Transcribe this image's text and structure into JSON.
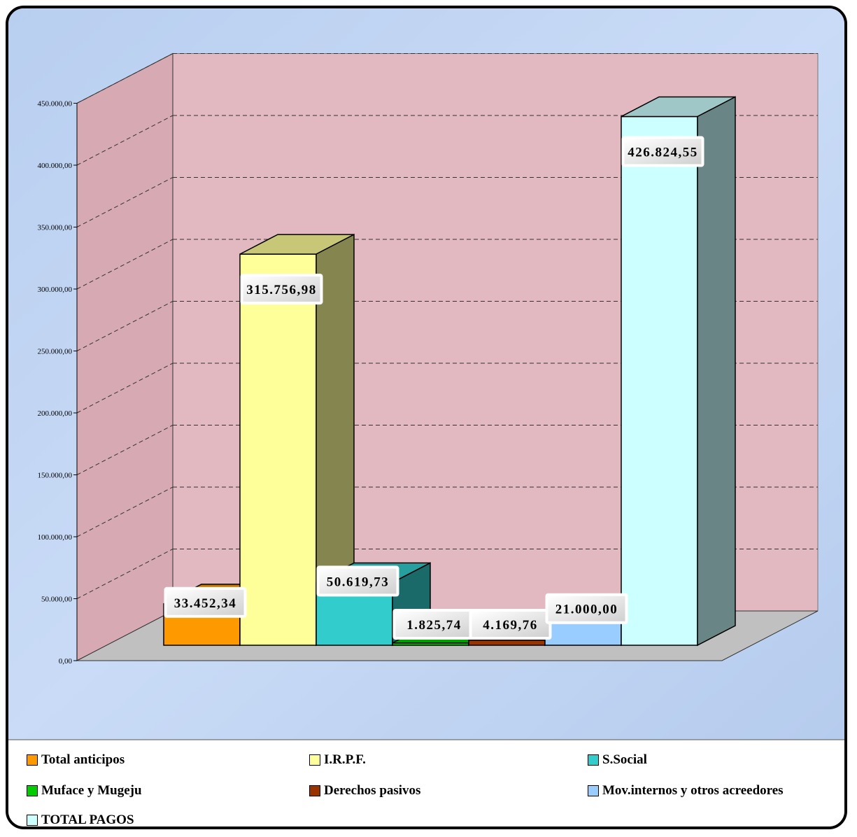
{
  "chart_data": {
    "type": "bar",
    "title": "",
    "xlabel": "",
    "ylabel": "",
    "ylim": [
      0,
      450000
    ],
    "y_ticks": [
      0,
      50000,
      100000,
      150000,
      200000,
      250000,
      300000,
      350000,
      400000,
      450000
    ],
    "y_tick_labels": [
      "0,00",
      "50.000,00",
      "100.000,00",
      "150.000,00",
      "200.000,00",
      "250.000,00",
      "300.000,00",
      "350.000,00",
      "400.000,00",
      "450.000,00"
    ],
    "grid": "dashed horizontal",
    "legend_position": "bottom",
    "series": [
      {
        "name": "Total anticipos",
        "value": 33452.34,
        "label": "33.452,34",
        "color": "#FF9900"
      },
      {
        "name": "I.R.P.F.",
        "value": 315756.98,
        "label": "315.756,98",
        "color": "#FFFF99"
      },
      {
        "name": "S.Social",
        "value": 50619.73,
        "label": "50.619,73",
        "color": "#33CCCC"
      },
      {
        "name": "Muface y Mugeju",
        "value": 1825.74,
        "label": "1.825,74",
        "color": "#00CC00"
      },
      {
        "name": "Derechos pasivos",
        "value": 4169.76,
        "label": "4.169,76",
        "color": "#993300"
      },
      {
        "name": "Mov.internos y otros acreedores",
        "value": 21000.0,
        "label": "21.000,00",
        "color": "#99CCFF"
      },
      {
        "name": "TOTAL PAGOS",
        "value": 426824.55,
        "label": "426.824,55",
        "color": "#CCFFFF"
      }
    ]
  },
  "colors": {
    "frame_background": "#C4D8F4",
    "back_wall": "#E2B9C0",
    "side_wall": "#D7A9B3",
    "floor": "#C0C0C0",
    "label_background": "#F2F2F2"
  }
}
